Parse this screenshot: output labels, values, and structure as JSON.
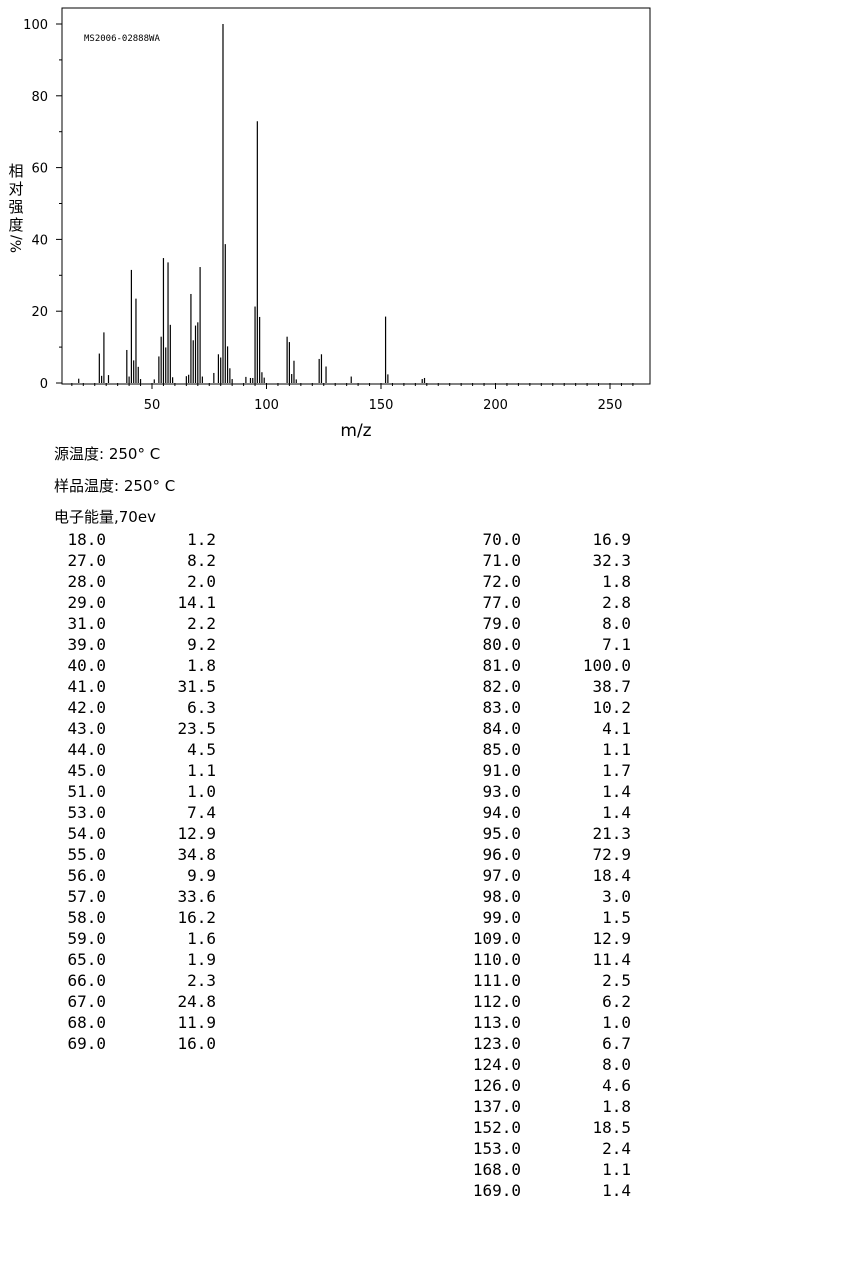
{
  "chart_data": {
    "type": "bar",
    "annotation": "MS2006-02888WA",
    "xlabel": "m/z",
    "ylabel": "相对强度%/度",
    "ylabel_lines": [
      "相",
      "对",
      "强",
      "度",
      "%/"
    ],
    "xlim": [
      10,
      262
    ],
    "ylim": [
      0,
      100
    ],
    "xticks": [
      50,
      100,
      150,
      200,
      250
    ],
    "yticks": [
      0,
      20,
      40,
      60,
      80,
      100
    ],
    "grid": false,
    "peaks": [
      [
        18.0,
        1.2
      ],
      [
        27.0,
        8.2
      ],
      [
        28.0,
        2.0
      ],
      [
        29.0,
        14.1
      ],
      [
        31.0,
        2.2
      ],
      [
        39.0,
        9.2
      ],
      [
        40.0,
        1.8
      ],
      [
        41.0,
        31.5
      ],
      [
        42.0,
        6.3
      ],
      [
        43.0,
        23.5
      ],
      [
        44.0,
        4.5
      ],
      [
        45.0,
        1.1
      ],
      [
        51.0,
        1.0
      ],
      [
        53.0,
        7.4
      ],
      [
        54.0,
        12.9
      ],
      [
        55.0,
        34.8
      ],
      [
        56.0,
        9.9
      ],
      [
        57.0,
        33.6
      ],
      [
        58.0,
        16.2
      ],
      [
        59.0,
        1.6
      ],
      [
        65.0,
        1.9
      ],
      [
        66.0,
        2.3
      ],
      [
        67.0,
        24.8
      ],
      [
        68.0,
        11.9
      ],
      [
        69.0,
        16.0
      ],
      [
        70.0,
        16.9
      ],
      [
        71.0,
        32.3
      ],
      [
        72.0,
        1.8
      ],
      [
        77.0,
        2.8
      ],
      [
        79.0,
        8.0
      ],
      [
        80.0,
        7.1
      ],
      [
        81.0,
        100.0
      ],
      [
        82.0,
        38.7
      ],
      [
        83.0,
        10.2
      ],
      [
        84.0,
        4.1
      ],
      [
        85.0,
        1.1
      ],
      [
        91.0,
        1.7
      ],
      [
        93.0,
        1.4
      ],
      [
        94.0,
        1.4
      ],
      [
        95.0,
        21.3
      ],
      [
        96.0,
        72.9
      ],
      [
        97.0,
        18.4
      ],
      [
        98.0,
        3.0
      ],
      [
        99.0,
        1.5
      ],
      [
        109.0,
        12.9
      ],
      [
        110.0,
        11.4
      ],
      [
        111.0,
        2.5
      ],
      [
        112.0,
        6.2
      ],
      [
        113.0,
        1.0
      ],
      [
        123.0,
        6.7
      ],
      [
        124.0,
        8.0
      ],
      [
        126.0,
        4.6
      ],
      [
        137.0,
        1.8
      ],
      [
        152.0,
        18.5
      ],
      [
        153.0,
        2.4
      ],
      [
        168.0,
        1.1
      ],
      [
        169.0,
        1.4
      ]
    ]
  },
  "conditions": {
    "source_temp": "源温度: 250° C",
    "sample_temp": "样品温度: 250° C",
    "electron_energy": "电子能量,70ev"
  },
  "table": {
    "left": [
      [
        "18.0",
        "1.2"
      ],
      [
        "27.0",
        "8.2"
      ],
      [
        "28.0",
        "2.0"
      ],
      [
        "29.0",
        "14.1"
      ],
      [
        "31.0",
        "2.2"
      ],
      [
        "39.0",
        "9.2"
      ],
      [
        "40.0",
        "1.8"
      ],
      [
        "41.0",
        "31.5"
      ],
      [
        "42.0",
        "6.3"
      ],
      [
        "43.0",
        "23.5"
      ],
      [
        "44.0",
        "4.5"
      ],
      [
        "45.0",
        "1.1"
      ],
      [
        "51.0",
        "1.0"
      ],
      [
        "53.0",
        "7.4"
      ],
      [
        "54.0",
        "12.9"
      ],
      [
        "55.0",
        "34.8"
      ],
      [
        "56.0",
        "9.9"
      ],
      [
        "57.0",
        "33.6"
      ],
      [
        "58.0",
        "16.2"
      ],
      [
        "59.0",
        "1.6"
      ],
      [
        "65.0",
        "1.9"
      ],
      [
        "66.0",
        "2.3"
      ],
      [
        "67.0",
        "24.8"
      ],
      [
        "68.0",
        "11.9"
      ],
      [
        "69.0",
        "16.0"
      ]
    ],
    "right": [
      [
        "70.0",
        "16.9"
      ],
      [
        "71.0",
        "32.3"
      ],
      [
        "72.0",
        "1.8"
      ],
      [
        "77.0",
        "2.8"
      ],
      [
        "79.0",
        "8.0"
      ],
      [
        "80.0",
        "7.1"
      ],
      [
        "81.0",
        "100.0"
      ],
      [
        "82.0",
        "38.7"
      ],
      [
        "83.0",
        "10.2"
      ],
      [
        "84.0",
        "4.1"
      ],
      [
        "85.0",
        "1.1"
      ],
      [
        "91.0",
        "1.7"
      ],
      [
        "93.0",
        "1.4"
      ],
      [
        "94.0",
        "1.4"
      ],
      [
        "95.0",
        "21.3"
      ],
      [
        "96.0",
        "72.9"
      ],
      [
        "97.0",
        "18.4"
      ],
      [
        "98.0",
        "3.0"
      ],
      [
        "99.0",
        "1.5"
      ],
      [
        "109.0",
        "12.9"
      ],
      [
        "110.0",
        "11.4"
      ],
      [
        "111.0",
        "2.5"
      ],
      [
        "112.0",
        "6.2"
      ],
      [
        "113.0",
        "1.0"
      ],
      [
        "123.0",
        "6.7"
      ],
      [
        "124.0",
        "8.0"
      ],
      [
        "126.0",
        "4.6"
      ],
      [
        "137.0",
        "1.8"
      ],
      [
        "152.0",
        "18.5"
      ],
      [
        "153.0",
        "2.4"
      ],
      [
        "168.0",
        "1.1"
      ],
      [
        "169.0",
        "1.4"
      ]
    ]
  }
}
